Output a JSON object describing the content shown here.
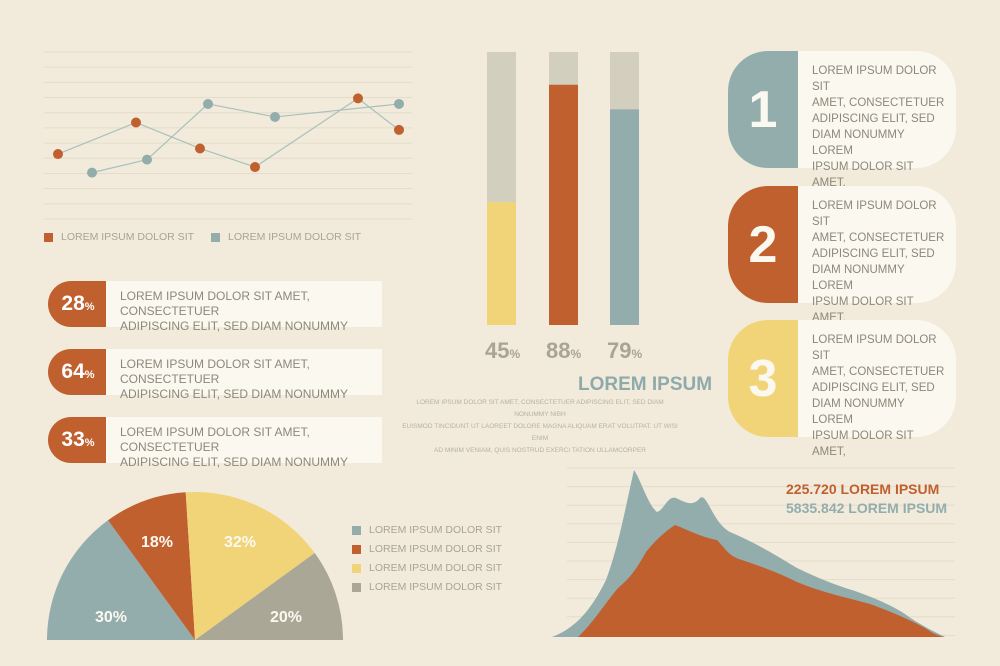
{
  "colors": {
    "orange": "#c0602f",
    "blue": "#93adad",
    "yellow": "#f2d478",
    "gray": "#aba796",
    "barTrack": "#d2cfbf",
    "text": "#8c8879",
    "lightText": "#a8a496",
    "titleBlue": "#8eaaaa"
  },
  "chart_data": [
    {
      "type": "line",
      "series": [
        {
          "name": "LOREM IPSUM DOLOR SIT",
          "color": "#c0602f",
          "values": [
            3.5,
            5.2,
            3.8,
            2.8,
            6.5,
            4.8
          ]
        },
        {
          "name": "LOREM IPSUM DOLOR SIT",
          "color": "#93adad",
          "values": [
            2.5,
            3.2,
            6.2,
            5.5,
            6.2
          ]
        }
      ],
      "ylim": [
        0,
        9
      ],
      "grid": true
    },
    {
      "type": "bar",
      "orientation": "vertical",
      "values": [
        45,
        88,
        79
      ],
      "labels": [
        "45",
        "88",
        "79"
      ],
      "unit": "%",
      "colors": [
        "#f2d478",
        "#c0602f",
        "#93adad"
      ],
      "ylim": [
        0,
        100
      ]
    },
    {
      "type": "pie",
      "style": "half",
      "slices": [
        {
          "label": "30%",
          "value": 30,
          "color": "#93adad"
        },
        {
          "label": "18%",
          "value": 18,
          "color": "#c0602f"
        },
        {
          "label": "32%",
          "value": 32,
          "color": "#f2d478"
        },
        {
          "label": "20%",
          "value": 20,
          "color": "#aba796"
        }
      ],
      "legend": [
        "LOREM IPSUM DOLOR SIT",
        "LOREM IPSUM DOLOR SIT",
        "LOREM IPSUM DOLOR SIT",
        "LOREM IPSUM DOLOR SIT"
      ]
    },
    {
      "type": "area",
      "series": [
        {
          "name": "5835.842 LOREM IPSUM",
          "color": "#93adad"
        },
        {
          "name": "225.720 LOREM IPSUM",
          "color": "#c0602f"
        }
      ],
      "grid": true
    }
  ],
  "lineLegend": [
    "LOREM IPSUM DOLOR SIT",
    "LOREM IPSUM DOLOR SIT"
  ],
  "percentRows": [
    {
      "num": "28",
      "unit": "%",
      "line1": "LOREM IPSUM DOLOR SIT AMET, CONSECTETUER",
      "line2": "ADIPISCING ELIT, SED DIAM NONUMMY"
    },
    {
      "num": "64",
      "unit": "%",
      "line1": "LOREM IPSUM DOLOR SIT AMET, CONSECTETUER",
      "line2": "ADIPISCING ELIT, SED DIAM NONUMMY"
    },
    {
      "num": "33",
      "unit": "%",
      "line1": "LOREM IPSUM DOLOR SIT AMET, CONSECTETUER",
      "line2": "ADIPISCING ELIT, SED DIAM NONUMMY"
    }
  ],
  "barBlock": {
    "title": "LOREM IPSUM",
    "body1": "LOREM IPSUM DOLOR SIT AMET, CONSECTETUER ADIPISCING ELIT, SED DIAM NONUMMY NIBH",
    "body2": "EUISMOD TINCIDUNT UT LAOREET DOLORE MAGNA ALIQUAM ERAT VOLUTPAT. UT WISI ENIM",
    "body3": "AD MINIM VENIAM, QUIS NOSTRUD EXERCI TATION ULLAMCORPER"
  },
  "cards": [
    {
      "num": "1",
      "l1": "LOREM IPSUM DOLOR SIT",
      "l2": "AMET, CONSECTETUER",
      "l3": "ADIPISCING ELIT, SED",
      "l4": "DIAM NONUMMY LOREM",
      "l5": "IPSUM DOLOR SIT AMET,"
    },
    {
      "num": "2",
      "l1": "LOREM IPSUM DOLOR SIT",
      "l2": "AMET, CONSECTETUER",
      "l3": "ADIPISCING ELIT, SED",
      "l4": "DIAM NONUMMY LOREM",
      "l5": "IPSUM DOLOR SIT AMET,"
    },
    {
      "num": "3",
      "l1": "LOREM IPSUM DOLOR SIT",
      "l2": "AMET, CONSECTETUER",
      "l3": "ADIPISCING ELIT, SED",
      "l4": "DIAM NONUMMY LOREM",
      "l5": "IPSUM DOLOR SIT AMET,"
    }
  ],
  "areaLabels": {
    "orange": "225.720 LOREM IPSUM",
    "blue": "5835.842 LOREM IPSUM"
  }
}
